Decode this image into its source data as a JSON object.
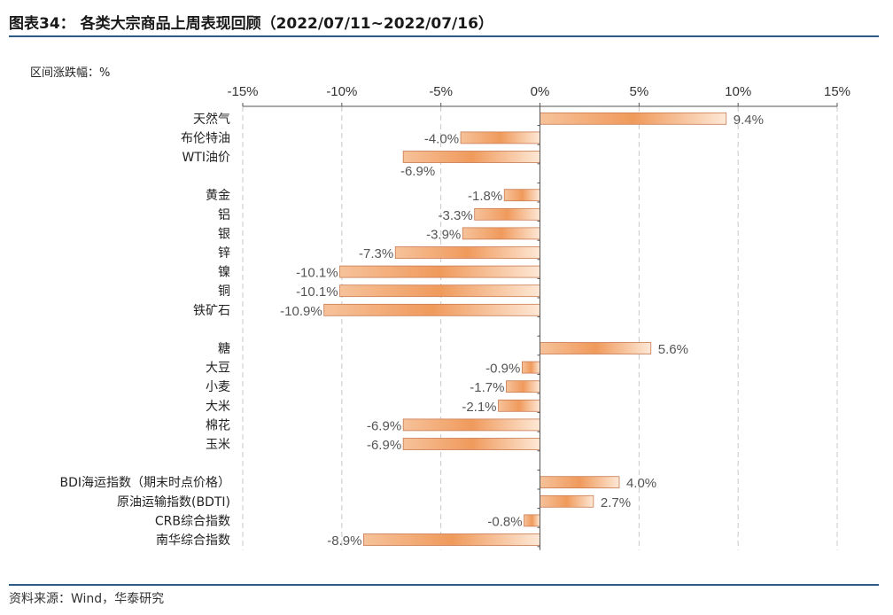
{
  "header": {
    "title": "图表34： 各类大宗商品上周表现回顾（2022/07/11~2022/07/16）"
  },
  "footer": {
    "source": "资料来源：Wind，华泰研究"
  },
  "colors": {
    "rule": "#2e5a86",
    "bar_dark": "#f0a060",
    "bar_light": "#fde8d6",
    "bar_border": "#c97a50",
    "grid": "#c8c8c8"
  },
  "chart_data": {
    "type": "bar",
    "orientation": "horizontal",
    "title": "",
    "xlabel": "",
    "ylabel": "区间涨跌幅：%",
    "xlim": [
      -15,
      15
    ],
    "x_ticks": [
      -15,
      -10,
      -5,
      0,
      5,
      10,
      15
    ],
    "x_tick_labels": [
      "-15%",
      "-10%",
      "-5%",
      "0%",
      "5%",
      "10%",
      "15%"
    ],
    "grid": "vertical dashed",
    "categories": [
      "天然气",
      "布伦特油",
      "WTI油价",
      "",
      "黄金",
      "铝",
      "银",
      "锌",
      "镍",
      "铜",
      "铁矿石",
      "",
      "糖",
      "大豆",
      "小麦",
      "大米",
      "棉花",
      "玉米",
      "",
      "BDI海运指数（期末时点价格）",
      "原油运输指数(BDTI)",
      "CRB综合指数",
      "南华综合指数"
    ],
    "values": [
      9.4,
      -4.0,
      -6.9,
      null,
      -1.8,
      -3.3,
      -3.9,
      -7.3,
      -10.1,
      -10.1,
      -10.9,
      null,
      5.6,
      -0.9,
      -1.7,
      -2.1,
      -6.9,
      -6.9,
      null,
      4.0,
      2.7,
      -0.8,
      -8.9
    ],
    "labels": [
      "9.4%",
      "-4.0%",
      "-6.9%",
      "",
      "-1.8%",
      "-3.3%",
      "-3.9%",
      "-7.3%",
      "-10.1%",
      "-10.1%",
      "-10.9%",
      "",
      "5.6%",
      "-0.9%",
      "-1.7%",
      "-2.1%",
      "-6.9%",
      "-6.9%",
      "",
      "4.0%",
      "2.7%",
      "-0.8%",
      "-8.9%"
    ]
  }
}
